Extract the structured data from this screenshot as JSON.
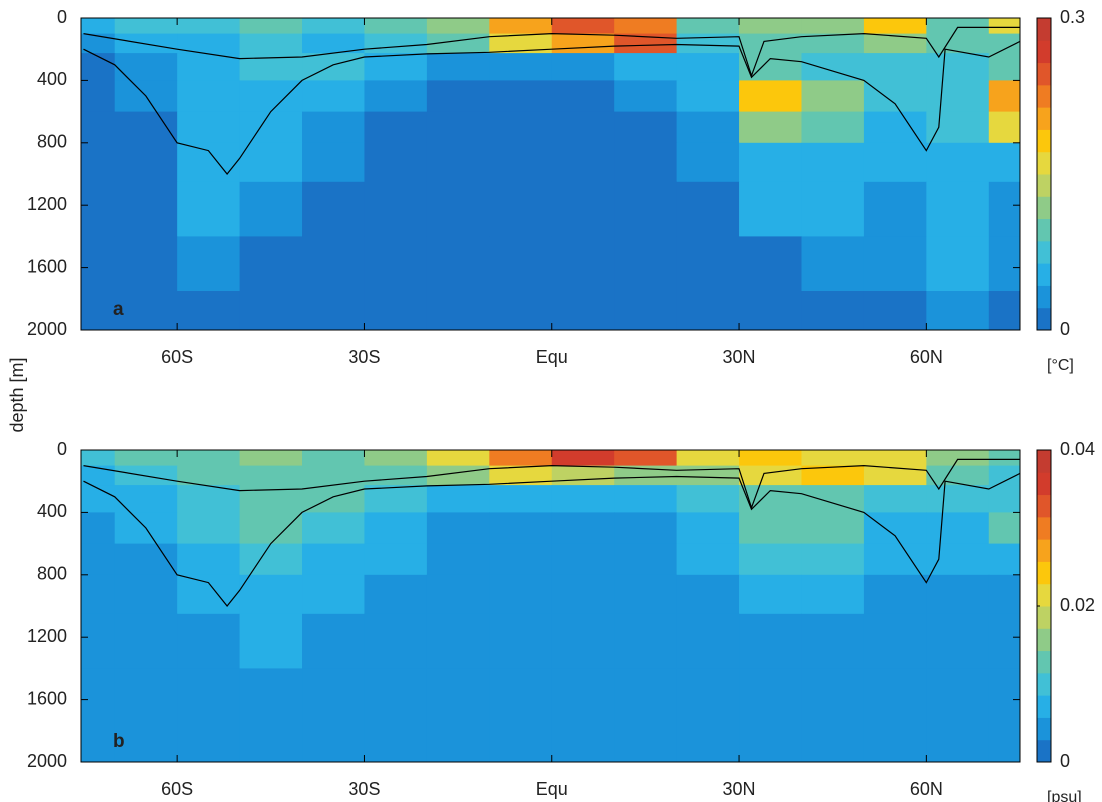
{
  "ylabel": "depth [m]",
  "chart_data": [
    {
      "type": "contour",
      "label": "a",
      "x": [
        -75,
        -65,
        -55,
        -45,
        -35,
        -25,
        -15,
        -5,
        5,
        15,
        25,
        35,
        45,
        55,
        65,
        75
      ],
      "y": [
        50,
        150,
        300,
        500,
        700,
        900,
        1200,
        1600,
        1900
      ],
      "z": [
        [
          0.05,
          0.08,
          0.08,
          0.1,
          0.08,
          0.1,
          0.12,
          0.2,
          0.25,
          0.22,
          0.1,
          0.12,
          0.12,
          0.18,
          0.1,
          0.15
        ],
        [
          0.03,
          0.05,
          0.06,
          0.08,
          0.06,
          0.08,
          0.1,
          0.15,
          0.2,
          0.25,
          0.08,
          0.1,
          0.1,
          0.12,
          0.1,
          0.1
        ],
        [
          0.02,
          0.04,
          0.06,
          0.07,
          0.08,
          0.06,
          0.04,
          0.03,
          0.04,
          0.06,
          0.06,
          0.1,
          0.08,
          0.08,
          0.08,
          0.1
        ],
        [
          0.02,
          0.03,
          0.06,
          0.06,
          0.05,
          0.03,
          0.02,
          0.02,
          0.02,
          0.03,
          0.05,
          0.18,
          0.12,
          0.08,
          0.08,
          0.2
        ],
        [
          0.02,
          0.02,
          0.06,
          0.06,
          0.04,
          0.02,
          0.02,
          0.02,
          0.02,
          0.02,
          0.04,
          0.12,
          0.1,
          0.06,
          0.08,
          0.15
        ],
        [
          0.02,
          0.02,
          0.05,
          0.05,
          0.03,
          0.02,
          0.02,
          0.02,
          0.02,
          0.02,
          0.04,
          0.06,
          0.06,
          0.05,
          0.06,
          0.06
        ],
        [
          0.02,
          0.02,
          0.05,
          0.04,
          0.02,
          0.02,
          0.02,
          0.02,
          0.02,
          0.02,
          0.02,
          0.05,
          0.05,
          0.04,
          0.05,
          0.04
        ],
        [
          0.02,
          0.02,
          0.04,
          0.02,
          0.02,
          0.02,
          0.02,
          0.02,
          0.02,
          0.02,
          0.02,
          0.02,
          0.04,
          0.03,
          0.05,
          0.03
        ],
        [
          0.02,
          0.02,
          0.02,
          0.02,
          0.02,
          0.02,
          0.02,
          0.02,
          0.02,
          0.02,
          0.02,
          0.02,
          0.02,
          0.02,
          0.04,
          0.02
        ]
      ],
      "xlim": [
        -75.4,
        75
      ],
      "ylim": [
        2000,
        0
      ],
      "xticks": [
        {
          "value": -60,
          "label": "60S"
        },
        {
          "value": -30,
          "label": "30S"
        },
        {
          "value": 0,
          "label": "Equ"
        },
        {
          "value": 30,
          "label": "30N"
        },
        {
          "value": 60,
          "label": "60N"
        }
      ],
      "yticks": [
        0,
        400,
        800,
        1200,
        1600,
        2000
      ],
      "zlim": [
        0,
        0.3
      ],
      "zticks": [
        0,
        0.3
      ],
      "colorbar_label": "[°C]",
      "colors": [
        "#1a73c6",
        "#1b93da",
        "#27afe6",
        "#41c0d6",
        "#62c6b0",
        "#8fcb88",
        "#bed263",
        "#e6d83e",
        "#fcc70c",
        "#f7a31c",
        "#ef7c22",
        "#e0562a",
        "#d23c2c",
        "#c43c30"
      ],
      "lines": [
        {
          "color": "#000000",
          "x": [
            -75,
            -60,
            -50,
            -40,
            -30,
            -20,
            -10,
            0,
            10,
            20,
            30,
            32,
            34,
            40,
            50,
            60,
            62,
            65,
            75
          ],
          "values": [
            100,
            200,
            260,
            250,
            200,
            170,
            120,
            100,
            110,
            130,
            120,
            370,
            150,
            120,
            100,
            130,
            250,
            60,
            60
          ]
        },
        {
          "color": "#000000",
          "x": [
            -75,
            -70,
            -65,
            -60,
            -55,
            -52,
            -50,
            -45,
            -40,
            -35,
            -30,
            -20,
            -10,
            0,
            10,
            20,
            30,
            32,
            35,
            40,
            50,
            55,
            60,
            62,
            63,
            70,
            75
          ],
          "values": [
            200,
            300,
            500,
            800,
            850,
            1000,
            900,
            600,
            400,
            300,
            250,
            230,
            220,
            200,
            180,
            170,
            180,
            380,
            260,
            280,
            400,
            550,
            850,
            700,
            200,
            250,
            150
          ]
        }
      ]
    },
    {
      "type": "contour",
      "label": "b",
      "x": [
        -75,
        -65,
        -55,
        -45,
        -35,
        -25,
        -15,
        -5,
        5,
        15,
        25,
        35,
        45,
        55,
        65,
        75
      ],
      "y": [
        50,
        150,
        300,
        500,
        700,
        900,
        1200,
        1600,
        1900
      ],
      "z": [
        [
          0.01,
          0.012,
          0.014,
          0.016,
          0.014,
          0.016,
          0.02,
          0.03,
          0.035,
          0.033,
          0.022,
          0.024,
          0.022,
          0.022,
          0.015,
          0.012
        ],
        [
          0.008,
          0.01,
          0.012,
          0.012,
          0.014,
          0.012,
          0.016,
          0.02,
          0.018,
          0.016,
          0.016,
          0.02,
          0.024,
          0.02,
          0.012,
          0.01
        ],
        [
          0.006,
          0.008,
          0.01,
          0.012,
          0.012,
          0.01,
          0.008,
          0.006,
          0.006,
          0.008,
          0.01,
          0.012,
          0.012,
          0.01,
          0.01,
          0.01
        ],
        [
          0.004,
          0.006,
          0.01,
          0.012,
          0.01,
          0.008,
          0.004,
          0.003,
          0.003,
          0.004,
          0.008,
          0.014,
          0.014,
          0.008,
          0.008,
          0.012
        ],
        [
          0.004,
          0.005,
          0.008,
          0.01,
          0.008,
          0.006,
          0.004,
          0.003,
          0.003,
          0.004,
          0.006,
          0.01,
          0.01,
          0.006,
          0.006,
          0.008
        ],
        [
          0.004,
          0.004,
          0.007,
          0.008,
          0.006,
          0.005,
          0.004,
          0.003,
          0.003,
          0.003,
          0.005,
          0.007,
          0.007,
          0.005,
          0.005,
          0.005
        ],
        [
          0.003,
          0.004,
          0.005,
          0.006,
          0.005,
          0.004,
          0.003,
          0.003,
          0.003,
          0.003,
          0.004,
          0.005,
          0.005,
          0.004,
          0.004,
          0.004
        ],
        [
          0.003,
          0.003,
          0.004,
          0.004,
          0.004,
          0.003,
          0.003,
          0.003,
          0.003,
          0.003,
          0.004,
          0.005,
          0.004,
          0.003,
          0.005,
          0.003
        ],
        [
          0.003,
          0.003,
          0.003,
          0.003,
          0.003,
          0.003,
          0.003,
          0.003,
          0.003,
          0.003,
          0.003,
          0.004,
          0.003,
          0.003,
          0.005,
          0.003
        ]
      ],
      "xlim": [
        -75.4,
        75
      ],
      "ylim": [
        2000,
        0
      ],
      "xticks": [
        {
          "value": -60,
          "label": "60S"
        },
        {
          "value": -30,
          "label": "30S"
        },
        {
          "value": 0,
          "label": "Equ"
        },
        {
          "value": 30,
          "label": "30N"
        },
        {
          "value": 60,
          "label": "60N"
        }
      ],
      "yticks": [
        0,
        400,
        800,
        1200,
        1600,
        2000
      ],
      "zlim": [
        0,
        0.04
      ],
      "zticks": [
        0,
        0.02,
        0.04
      ],
      "colorbar_label": "[psu]",
      "colors": [
        "#1a73c6",
        "#1b93da",
        "#27afe6",
        "#41c0d6",
        "#62c6b0",
        "#8fcb88",
        "#bed263",
        "#e6d83e",
        "#fcc70c",
        "#f7a31c",
        "#ef7c22",
        "#e0562a",
        "#d23c2c",
        "#c43c30"
      ],
      "lines": [
        {
          "color": "#000000",
          "x": [
            -75,
            -60,
            -50,
            -40,
            -30,
            -20,
            -10,
            0,
            10,
            20,
            30,
            32,
            34,
            40,
            50,
            60,
            62,
            65,
            75
          ],
          "values": [
            100,
            200,
            260,
            250,
            200,
            170,
            120,
            100,
            110,
            130,
            120,
            370,
            150,
            120,
            100,
            130,
            250,
            60,
            60
          ]
        },
        {
          "color": "#000000",
          "x": [
            -75,
            -70,
            -65,
            -60,
            -55,
            -52,
            -50,
            -45,
            -40,
            -35,
            -30,
            -20,
            -10,
            0,
            10,
            20,
            30,
            32,
            35,
            40,
            50,
            55,
            60,
            62,
            63,
            70,
            75
          ],
          "values": [
            200,
            300,
            500,
            800,
            850,
            1000,
            900,
            600,
            400,
            300,
            250,
            230,
            220,
            200,
            180,
            170,
            180,
            380,
            260,
            280,
            400,
            550,
            850,
            700,
            200,
            250,
            150
          ]
        }
      ]
    }
  ]
}
